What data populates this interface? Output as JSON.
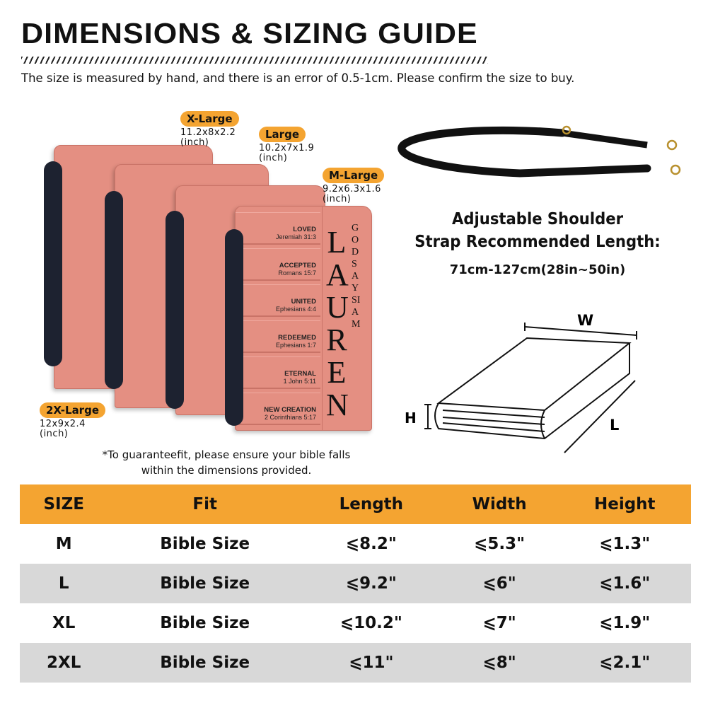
{
  "title": "DIMENSIONS & SIZING GUIDE",
  "subtitle": "The size is measured by hand, and there is an error of 0.5-1cm. Please confirm the size to buy.",
  "colors": {
    "accent": "#f4a431",
    "cover": "#e48f82",
    "row_alt": "#d8d8d8"
  },
  "sizes": [
    {
      "badge": "X-Large",
      "dims": "11.2x8x2.2",
      "unit": "(inch)"
    },
    {
      "badge": "Large",
      "dims": "10.2x7x1.9",
      "unit": "(inch)"
    },
    {
      "badge": "M-Large",
      "dims": "9.2x6.3x1.6",
      "unit": "(inch)"
    },
    {
      "badge": "2X-Large",
      "dims": "12x9x2.4",
      "unit": "(inch)"
    }
  ],
  "cover": {
    "name": "LAUREN",
    "side": "GODSAYSIAM",
    "labels": [
      {
        "word": "LOVED",
        "ref": "Jeremiah 31:3"
      },
      {
        "word": "ACCEPTED",
        "ref": "Romans 15:7"
      },
      {
        "word": "UNITED",
        "ref": "Ephesians 4:4"
      },
      {
        "word": "REDEEMED",
        "ref": "Ephesians 1:7"
      },
      {
        "word": "ETERNAL",
        "ref": "1 John 5:11"
      },
      {
        "word": "NEW CREATION",
        "ref": "2 Corinthians 5:17"
      }
    ]
  },
  "strap": {
    "line1": "Adjustable Shoulder",
    "line2": "Strap Recommended Length:",
    "length": "71cm-127cm(28in~50in)"
  },
  "diagram": {
    "w": "W",
    "h": "H",
    "l": "L"
  },
  "note": {
    "line1": "*To guaranteefit, please ensure your bible falls",
    "line2": "within the dimensions provided."
  },
  "table": {
    "headers": [
      "SIZE",
      "Fit",
      "Length",
      "Width",
      "Height"
    ],
    "rows": [
      [
        "M",
        "Bible Size",
        "⩽8.2\"",
        "⩽5.3\"",
        "⩽1.3\""
      ],
      [
        "L",
        "Bible Size",
        "⩽9.2\"",
        "⩽6\"",
        "⩽1.6\""
      ],
      [
        "XL",
        "Bible Size",
        "⩽10.2\"",
        "⩽7\"",
        "⩽1.9\""
      ],
      [
        "2XL",
        "Bible Size",
        "⩽11\"",
        "⩽8\"",
        "⩽2.1\""
      ]
    ]
  }
}
